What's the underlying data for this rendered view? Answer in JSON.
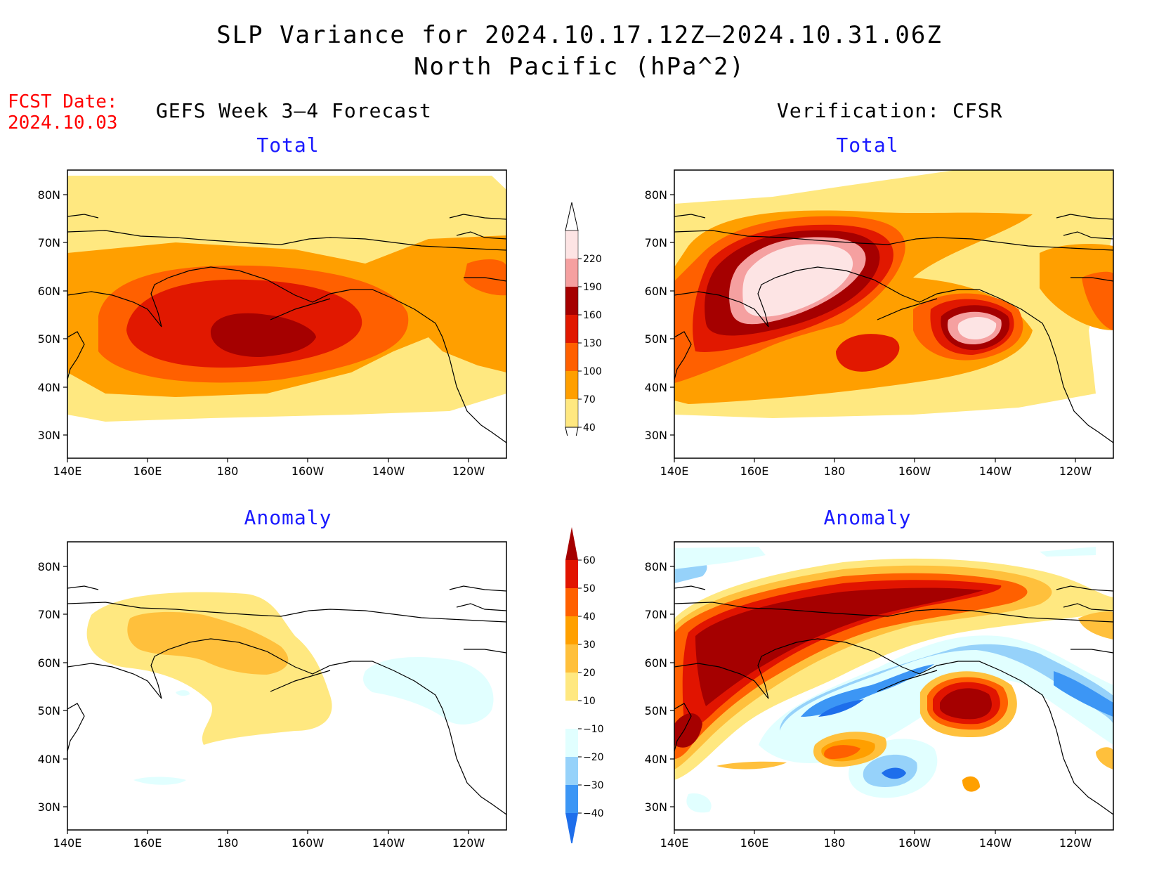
{
  "header": {
    "title": "SLP Variance for 2024.10.17.12Z—2024.10.31.06Z",
    "subtitle": "North Pacific (hPa^2)",
    "fcst_label": "FCST Date:",
    "fcst_date": "2024.10.03"
  },
  "columns": {
    "left": "GEFS Week 3—4 Forecast",
    "right": "Verification: CFSR"
  },
  "panels": {
    "top_left": "Total",
    "top_right": "Total",
    "bottom_left": "Anomaly",
    "bottom_right": "Anomaly"
  },
  "axes": {
    "lat_labels": [
      "80N",
      "70N",
      "60N",
      "50N",
      "40N",
      "30N"
    ],
    "lon_labels": [
      "140E",
      "160E",
      "180",
      "160W",
      "140W",
      "120W"
    ]
  },
  "total_colorbar": {
    "labels": [
      "40",
      "70",
      "100",
      "130",
      "160",
      "190",
      "220"
    ],
    "colors": [
      "#ffe880",
      "#ff9f00",
      "#ff6000",
      "#e11800",
      "#a50000",
      "#f5a0a0",
      "#fde4e4"
    ]
  },
  "anomaly_colorbar": {
    "labels": [
      "−40",
      "−30",
      "−20",
      "−10",
      "10",
      "20",
      "30",
      "40",
      "50",
      "60"
    ],
    "colors": [
      "#1e6eeb",
      "#3c96f5",
      "#96d2fa",
      "#e1ffff",
      "#ffffff",
      "#ffe880",
      "#ffc03c",
      "#ffa000",
      "#ff6000",
      "#e11400",
      "#a50000"
    ]
  }
}
